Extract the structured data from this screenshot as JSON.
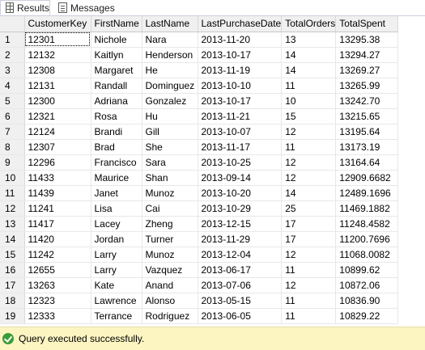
{
  "tabs": [
    {
      "label": "Results",
      "icon": "grid-icon",
      "active": true
    },
    {
      "label": "Messages",
      "icon": "message-icon",
      "active": false
    }
  ],
  "grid": {
    "columns": [
      "",
      "CustomerKey",
      "FirstName",
      "LastName",
      "LastPurchaseDate",
      "TotalOrders",
      "TotalSpent"
    ],
    "rows": [
      [
        "1",
        "12301",
        "Nichole",
        "Nara",
        "2013-11-20",
        "13",
        "13295.38"
      ],
      [
        "2",
        "12132",
        "Kaitlyn",
        "Henderson",
        "2013-10-17",
        "14",
        "13294.27"
      ],
      [
        "3",
        "12308",
        "Margaret",
        "He",
        "2013-11-19",
        "14",
        "13269.27"
      ],
      [
        "4",
        "12131",
        "Randall",
        "Dominguez",
        "2013-10-10",
        "11",
        "13265.99"
      ],
      [
        "5",
        "12300",
        "Adriana",
        "Gonzalez",
        "2013-10-17",
        "10",
        "13242.70"
      ],
      [
        "6",
        "12321",
        "Rosa",
        "Hu",
        "2013-11-21",
        "15",
        "13215.65"
      ],
      [
        "7",
        "12124",
        "Brandi",
        "Gill",
        "2013-10-07",
        "12",
        "13195.64"
      ],
      [
        "8",
        "12307",
        "Brad",
        "She",
        "2013-11-17",
        "11",
        "13173.19"
      ],
      [
        "9",
        "12296",
        "Francisco",
        "Sara",
        "2013-10-25",
        "12",
        "13164.64"
      ],
      [
        "10",
        "11433",
        "Maurice",
        "Shan",
        "2013-09-14",
        "12",
        "12909.6682"
      ],
      [
        "11",
        "11439",
        "Janet",
        "Munoz",
        "2013-10-20",
        "14",
        "12489.1696"
      ],
      [
        "12",
        "11241",
        "Lisa",
        "Cai",
        "2013-10-29",
        "25",
        "11469.1882"
      ],
      [
        "13",
        "11417",
        "Lacey",
        "Zheng",
        "2013-12-15",
        "17",
        "11248.4582"
      ],
      [
        "14",
        "11420",
        "Jordan",
        "Turner",
        "2013-11-29",
        "17",
        "11200.7696"
      ],
      [
        "15",
        "11242",
        "Larry",
        "Munoz",
        "2013-12-04",
        "12",
        "11068.0082"
      ],
      [
        "16",
        "12655",
        "Larry",
        "Vazquez",
        "2013-06-17",
        "11",
        "10899.62"
      ],
      [
        "17",
        "13263",
        "Kate",
        "Anand",
        "2013-07-06",
        "12",
        "10872.06"
      ],
      [
        "18",
        "12323",
        "Lawrence",
        "Alonso",
        "2013-05-15",
        "11",
        "10836.90"
      ],
      [
        "19",
        "12333",
        "Terrance",
        "Rodriguez",
        "2013-06-05",
        "11",
        "10829.22"
      ]
    ]
  },
  "status": {
    "text": "Query executed successfully.",
    "icon": "check-circle-icon",
    "background": "#fcf5c2",
    "icon_color": "#3a9b3a"
  }
}
